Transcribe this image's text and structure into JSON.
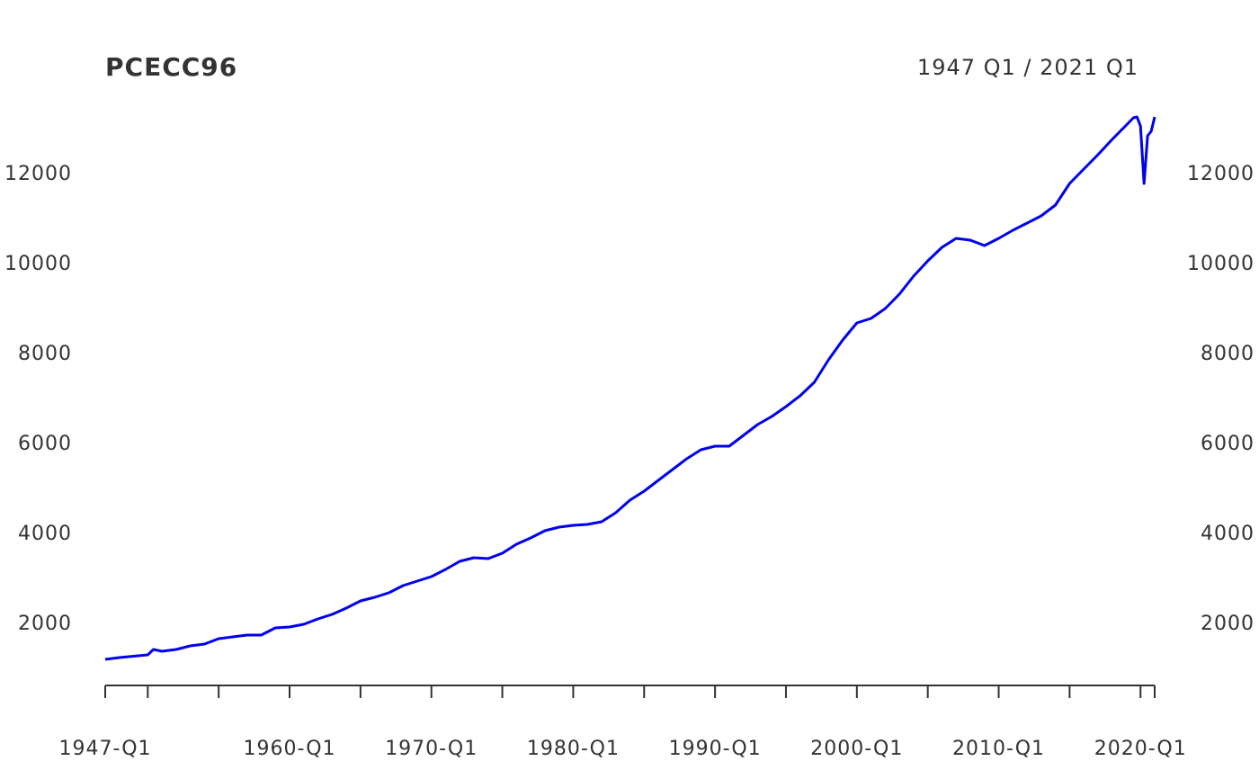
{
  "chart_data": {
    "type": "line",
    "title": "PCECC96",
    "subtitle": "1947 Q1 / 2021 Q1",
    "x": [
      1947,
      1948,
      1949,
      1950,
      1950.4,
      1951,
      1952,
      1953,
      1954,
      1955,
      1956,
      1957,
      1958,
      1959,
      1960,
      1961,
      1962,
      1963,
      1964,
      1965,
      1966,
      1967,
      1968,
      1969,
      1970,
      1971,
      1972,
      1973,
      1974,
      1975,
      1976,
      1977,
      1978,
      1979,
      1980,
      1981,
      1982,
      1983,
      1984,
      1985,
      1986,
      1987,
      1988,
      1989,
      1990,
      1991,
      1992,
      1993,
      1994,
      1995,
      1996,
      1997,
      1998,
      1999,
      2000,
      2001,
      2002,
      2003,
      2004,
      2005,
      2006,
      2007,
      2008,
      2009,
      2010,
      2011,
      2012,
      2013,
      2014,
      2015,
      2016,
      2017,
      2018,
      2019,
      2019.5,
      2019.75,
      2020,
      2020.25,
      2020.5,
      2020.75,
      2021
    ],
    "series": [
      {
        "name": "PCECC96",
        "color": "#0000ee",
        "values": [
          1220,
          1260,
          1290,
          1320,
          1440,
          1400,
          1440,
          1520,
          1560,
          1680,
          1720,
          1760,
          1760,
          1920,
          1940,
          2000,
          2120,
          2220,
          2360,
          2520,
          2600,
          2700,
          2860,
          2960,
          3060,
          3220,
          3400,
          3480,
          3460,
          3580,
          3780,
          3920,
          4080,
          4160,
          4200,
          4220,
          4280,
          4480,
          4760,
          4960,
          5200,
          5440,
          5680,
          5880,
          5960,
          5960,
          6200,
          6440,
          6620,
          6840,
          7080,
          7380,
          7880,
          8320,
          8700,
          8800,
          9020,
          9340,
          9740,
          10080,
          10380,
          10580,
          10540,
          10420,
          10580,
          10760,
          10920,
          11080,
          11320,
          11800,
          12120,
          12440,
          12780,
          13100,
          13260,
          13280,
          13080,
          11800,
          12860,
          12960,
          13280
        ]
      }
    ],
    "xlim": [
      1947,
      2021
    ],
    "xticks": [
      {
        "value": 1947,
        "label": "1947-Q1"
      },
      {
        "value": 1960,
        "label": "1960-Q1"
      },
      {
        "value": 1970,
        "label": "1970-Q1"
      },
      {
        "value": 1980,
        "label": "1980-Q1"
      },
      {
        "value": 1990,
        "label": "1990-Q1"
      },
      {
        "value": 2000,
        "label": "2000-Q1"
      },
      {
        "value": 2010,
        "label": "2010-Q1"
      },
      {
        "value": 2020,
        "label": "2020-Q1"
      }
    ],
    "xminor_ticks": [
      1950,
      1955,
      1965,
      1975,
      1985,
      1995,
      2005,
      2015,
      2021
    ],
    "ylim": [
      800,
      13400
    ],
    "yticks": [
      2000,
      4000,
      6000,
      8000,
      10000,
      12000
    ]
  }
}
